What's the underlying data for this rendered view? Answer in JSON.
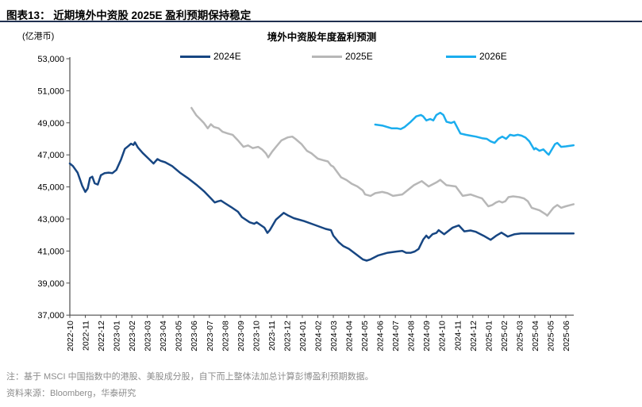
{
  "header": {
    "title": "图表13：  近期境外中资股 2025E 盈利预期保持稳定"
  },
  "chart": {
    "unit_label": "(亿港币)",
    "title": "境外中资股年度盈利预测"
  },
  "footnotes": {
    "note": "注：基于 MSCI 中国指数中的港股、美股成分股，自下而上整体法加总计算彭博盈利预期数据。",
    "source": "资料来源：Bloomberg，华泰研究"
  },
  "chart_data": {
    "type": "line",
    "title": "境外中资股年度盈利预测",
    "ylabel": "亿港币",
    "ylim": [
      37000,
      53000
    ],
    "y_ticks": [
      37000,
      39000,
      41000,
      43000,
      45000,
      47000,
      49000,
      51000,
      53000
    ],
    "grid": false,
    "legend_position": "top",
    "x_unit": "month_index_from_2022-10",
    "x_labels": [
      "2022-10",
      "2022-11",
      "2022-12",
      "2023-01",
      "2023-02",
      "2023-03",
      "2023-04",
      "2023-05",
      "2023-06",
      "2023-07",
      "2023-08",
      "2023-09",
      "2023-10",
      "2023-11",
      "2023-12",
      "2024-01",
      "2024-02",
      "2024-03",
      "2024-04",
      "2024-05",
      "2024-06",
      "2024-07",
      "2024-08",
      "2024-09",
      "2024-10",
      "2024-11",
      "2024-12",
      "2025-01",
      "2025-02",
      "2025-03",
      "2025-04",
      "2025-05",
      "2025-06"
    ],
    "series": [
      {
        "name": "2024E",
        "color": "#174682",
        "points": [
          [
            0,
            46460
          ],
          [
            0.2,
            46300
          ],
          [
            0.5,
            45890
          ],
          [
            0.8,
            45070
          ],
          [
            1.0,
            44690
          ],
          [
            1.15,
            44900
          ],
          [
            1.3,
            45560
          ],
          [
            1.45,
            45640
          ],
          [
            1.6,
            45230
          ],
          [
            1.8,
            45150
          ],
          [
            2.0,
            45730
          ],
          [
            2.25,
            45860
          ],
          [
            2.5,
            45890
          ],
          [
            2.75,
            45860
          ],
          [
            3.0,
            46060
          ],
          [
            3.3,
            46710
          ],
          [
            3.55,
            47370
          ],
          [
            3.8,
            47570
          ],
          [
            3.95,
            47700
          ],
          [
            4.1,
            47620
          ],
          [
            4.2,
            47780
          ],
          [
            4.4,
            47450
          ],
          [
            4.7,
            47120
          ],
          [
            5.05,
            46790
          ],
          [
            5.4,
            46460
          ],
          [
            5.65,
            46740
          ],
          [
            5.85,
            46630
          ],
          [
            6.15,
            46540
          ],
          [
            6.6,
            46300
          ],
          [
            7.1,
            45890
          ],
          [
            7.6,
            45560
          ],
          [
            8.15,
            45150
          ],
          [
            8.65,
            44740
          ],
          [
            9.15,
            44240
          ],
          [
            9.35,
            44030
          ],
          [
            9.55,
            44100
          ],
          [
            9.75,
            44150
          ],
          [
            10.0,
            43990
          ],
          [
            10.4,
            43750
          ],
          [
            10.85,
            43450
          ],
          [
            11.1,
            43120
          ],
          [
            11.6,
            42790
          ],
          [
            11.9,
            42700
          ],
          [
            12.05,
            42790
          ],
          [
            12.3,
            42630
          ],
          [
            12.55,
            42460
          ],
          [
            12.75,
            42130
          ],
          [
            12.9,
            42300
          ],
          [
            13.3,
            42960
          ],
          [
            13.8,
            43380
          ],
          [
            14.1,
            43210
          ],
          [
            14.45,
            43050
          ],
          [
            15.1,
            42870
          ],
          [
            15.8,
            42630
          ],
          [
            16.5,
            42380
          ],
          [
            16.85,
            42300
          ],
          [
            17.0,
            41960
          ],
          [
            17.35,
            41550
          ],
          [
            17.65,
            41300
          ],
          [
            18.0,
            41140
          ],
          [
            18.45,
            40810
          ],
          [
            18.9,
            40480
          ],
          [
            19.15,
            40400
          ],
          [
            19.4,
            40480
          ],
          [
            19.9,
            40730
          ],
          [
            20.5,
            40890
          ],
          [
            21.1,
            40970
          ],
          [
            21.45,
            41010
          ],
          [
            21.7,
            40890
          ],
          [
            22.0,
            40890
          ],
          [
            22.25,
            40970
          ],
          [
            22.5,
            41130
          ],
          [
            22.8,
            41720
          ],
          [
            23.0,
            41960
          ],
          [
            23.15,
            41800
          ],
          [
            23.4,
            42050
          ],
          [
            23.65,
            42130
          ],
          [
            23.8,
            42300
          ],
          [
            24.15,
            42050
          ],
          [
            24.7,
            42460
          ],
          [
            25.1,
            42600
          ],
          [
            25.45,
            42230
          ],
          [
            25.85,
            42280
          ],
          [
            26.2,
            42200
          ],
          [
            26.7,
            41950
          ],
          [
            27.15,
            41700
          ],
          [
            27.5,
            41950
          ],
          [
            27.85,
            42150
          ],
          [
            28.25,
            41900
          ],
          [
            28.7,
            42050
          ],
          [
            29.1,
            42100
          ],
          [
            30.0,
            42100
          ],
          [
            31.0,
            42100
          ],
          [
            32.0,
            42100
          ],
          [
            32.5,
            42100
          ]
        ]
      },
      {
        "name": "2025E",
        "color": "#b7b7b7",
        "points": [
          [
            7.85,
            49930
          ],
          [
            8.15,
            49480
          ],
          [
            8.4,
            49240
          ],
          [
            8.65,
            48990
          ],
          [
            8.9,
            48660
          ],
          [
            9.1,
            48910
          ],
          [
            9.3,
            48740
          ],
          [
            9.6,
            48660
          ],
          [
            9.85,
            48440
          ],
          [
            10.2,
            48330
          ],
          [
            10.5,
            48250
          ],
          [
            10.85,
            47900
          ],
          [
            11.2,
            47500
          ],
          [
            11.5,
            47590
          ],
          [
            11.8,
            47420
          ],
          [
            12.15,
            47500
          ],
          [
            12.4,
            47340
          ],
          [
            12.65,
            47090
          ],
          [
            12.8,
            46840
          ],
          [
            13.05,
            47200
          ],
          [
            13.3,
            47500
          ],
          [
            13.65,
            47900
          ],
          [
            14.05,
            48090
          ],
          [
            14.35,
            48140
          ],
          [
            14.55,
            48000
          ],
          [
            14.95,
            47670
          ],
          [
            15.3,
            47250
          ],
          [
            15.6,
            47090
          ],
          [
            16.0,
            46760
          ],
          [
            16.35,
            46670
          ],
          [
            16.65,
            46590
          ],
          [
            16.85,
            46340
          ],
          [
            17.0,
            46260
          ],
          [
            17.5,
            45600
          ],
          [
            17.85,
            45430
          ],
          [
            18.2,
            45190
          ],
          [
            18.55,
            45030
          ],
          [
            18.9,
            44780
          ],
          [
            19.05,
            44530
          ],
          [
            19.4,
            44440
          ],
          [
            19.7,
            44610
          ],
          [
            20.15,
            44690
          ],
          [
            20.5,
            44610
          ],
          [
            20.85,
            44440
          ],
          [
            21.45,
            44530
          ],
          [
            22.2,
            45110
          ],
          [
            22.7,
            45360
          ],
          [
            23.15,
            45030
          ],
          [
            23.65,
            45280
          ],
          [
            23.9,
            45440
          ],
          [
            24.3,
            45110
          ],
          [
            24.9,
            45030
          ],
          [
            25.35,
            44440
          ],
          [
            25.85,
            44530
          ],
          [
            26.35,
            44360
          ],
          [
            26.6,
            44280
          ],
          [
            27.0,
            43790
          ],
          [
            27.25,
            43870
          ],
          [
            27.5,
            44030
          ],
          [
            27.7,
            44110
          ],
          [
            27.9,
            44030
          ],
          [
            28.1,
            44110
          ],
          [
            28.3,
            44360
          ],
          [
            28.6,
            44410
          ],
          [
            29.0,
            44360
          ],
          [
            29.3,
            44280
          ],
          [
            29.55,
            44110
          ],
          [
            29.8,
            43700
          ],
          [
            30.3,
            43540
          ],
          [
            30.7,
            43290
          ],
          [
            30.8,
            43210
          ],
          [
            31.0,
            43450
          ],
          [
            31.2,
            43700
          ],
          [
            31.45,
            43870
          ],
          [
            31.7,
            43700
          ],
          [
            32.0,
            43790
          ],
          [
            32.3,
            43870
          ],
          [
            32.5,
            43920
          ]
        ]
      },
      {
        "name": "2026E",
        "color": "#1badee",
        "points": [
          [
            19.7,
            48890
          ],
          [
            20.2,
            48820
          ],
          [
            20.75,
            48660
          ],
          [
            21.1,
            48660
          ],
          [
            21.35,
            48610
          ],
          [
            21.6,
            48740
          ],
          [
            22.0,
            49070
          ],
          [
            22.35,
            49400
          ],
          [
            22.65,
            49490
          ],
          [
            22.8,
            49400
          ],
          [
            23.0,
            49150
          ],
          [
            23.25,
            49240
          ],
          [
            23.45,
            49150
          ],
          [
            23.65,
            49490
          ],
          [
            23.9,
            49630
          ],
          [
            24.1,
            49490
          ],
          [
            24.3,
            49070
          ],
          [
            24.6,
            48990
          ],
          [
            24.8,
            49070
          ],
          [
            25.2,
            48330
          ],
          [
            25.55,
            48250
          ],
          [
            25.85,
            48200
          ],
          [
            26.2,
            48140
          ],
          [
            26.6,
            48040
          ],
          [
            26.9,
            48000
          ],
          [
            27.15,
            47840
          ],
          [
            27.4,
            47750
          ],
          [
            27.65,
            48000
          ],
          [
            27.9,
            48140
          ],
          [
            28.15,
            48000
          ],
          [
            28.4,
            48250
          ],
          [
            28.65,
            48200
          ],
          [
            28.9,
            48250
          ],
          [
            29.15,
            48200
          ],
          [
            29.4,
            48080
          ],
          [
            29.65,
            47840
          ],
          [
            29.95,
            47340
          ],
          [
            30.05,
            47420
          ],
          [
            30.3,
            47250
          ],
          [
            30.55,
            47340
          ],
          [
            30.8,
            47090
          ],
          [
            30.9,
            47010
          ],
          [
            31.3,
            47670
          ],
          [
            31.45,
            47750
          ],
          [
            31.7,
            47500
          ],
          [
            32.0,
            47530
          ],
          [
            32.5,
            47600
          ]
        ]
      }
    ]
  }
}
